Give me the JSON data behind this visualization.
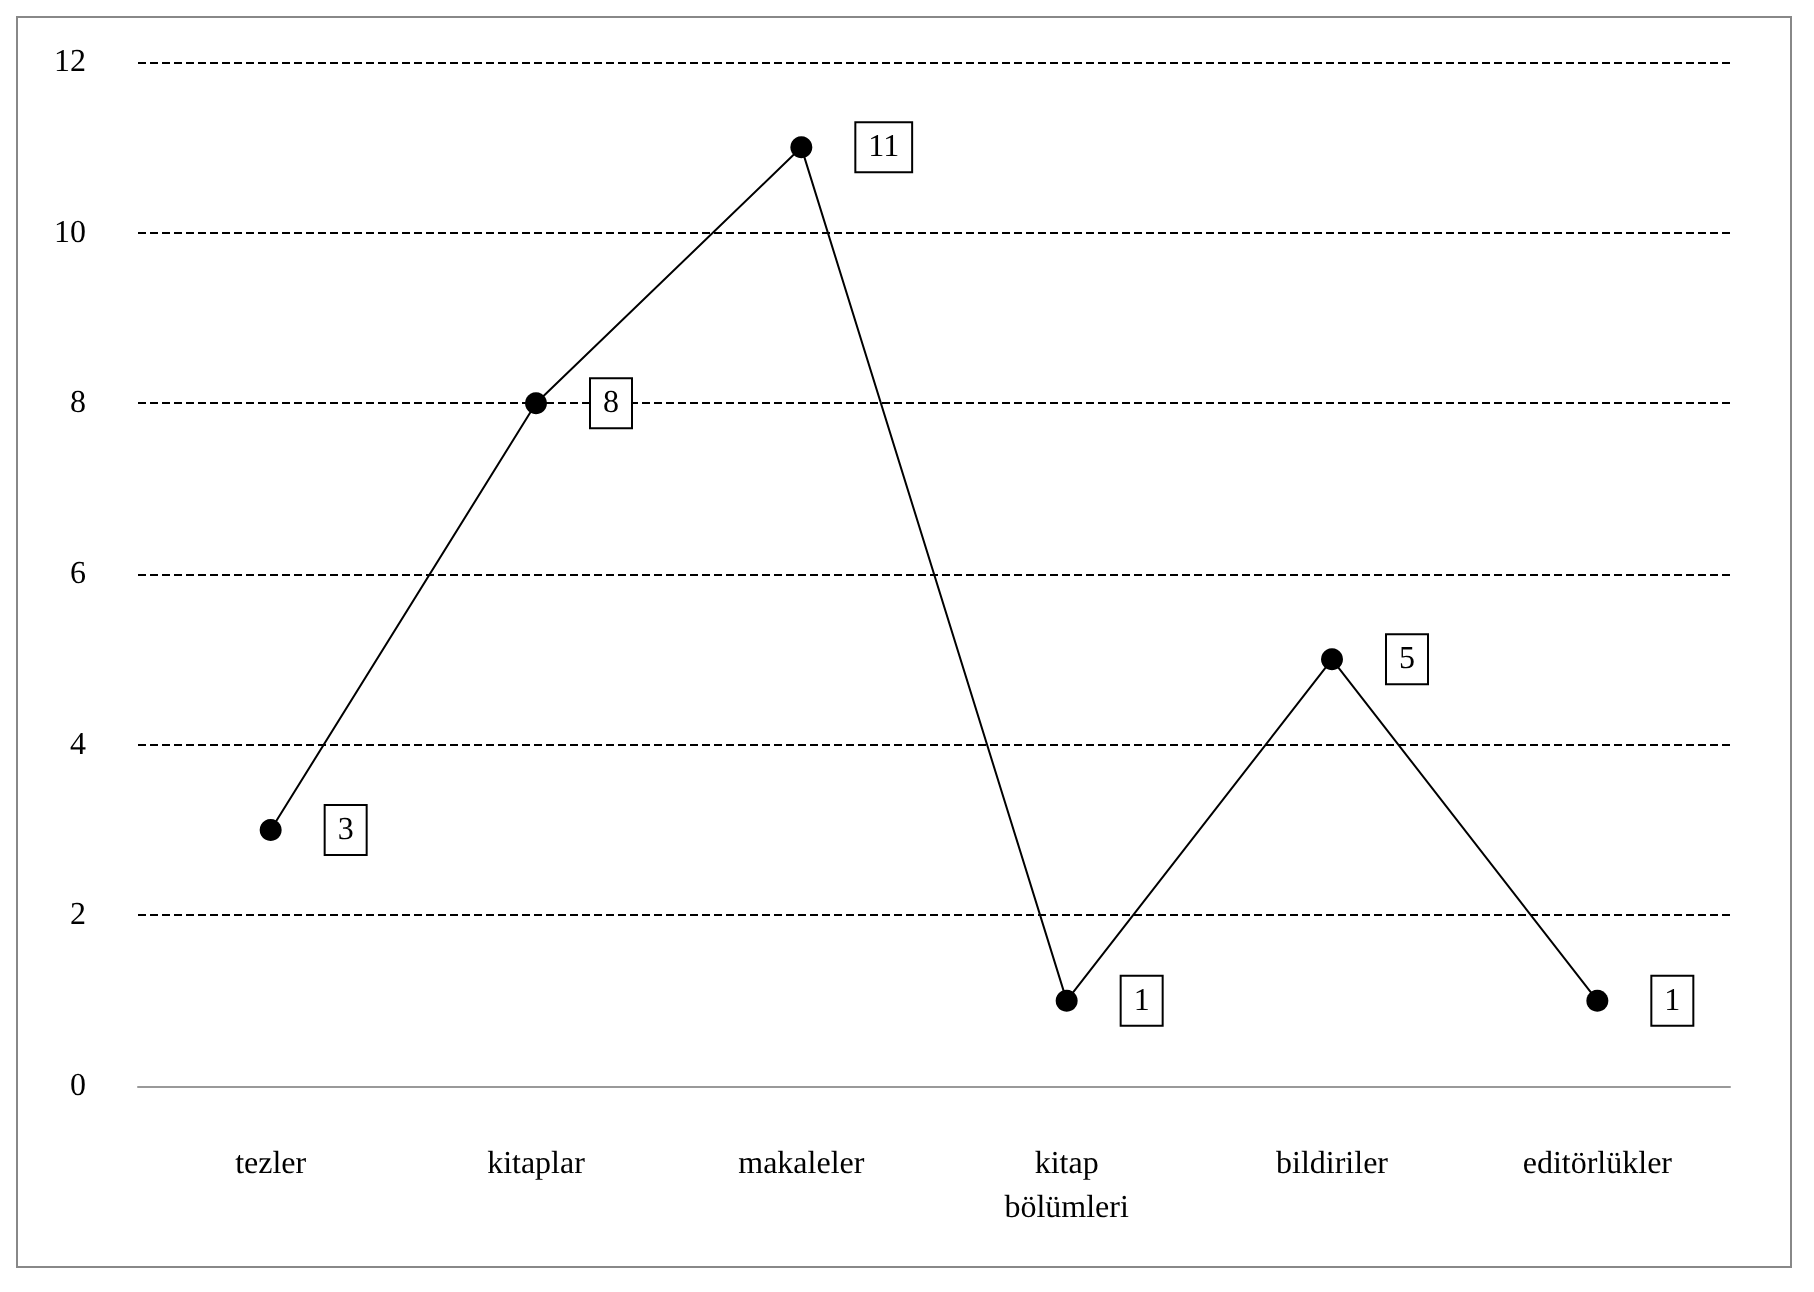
{
  "chart_data": {
    "type": "line",
    "categories": [
      "tezler",
      "kitaplar",
      "makaleler",
      "kitap bölümleri",
      "bildiriler",
      "editörlükler"
    ],
    "series": [
      {
        "color": "#000000",
        "values": [
          3,
          8,
          11,
          1,
          5,
          1
        ]
      }
    ],
    "ylim": [
      0,
      12
    ],
    "yticks": [
      0,
      2,
      4,
      6,
      8,
      10,
      12
    ],
    "grid": "y",
    "marker": "circle",
    "line_style": "solid",
    "data_labels": true
  }
}
